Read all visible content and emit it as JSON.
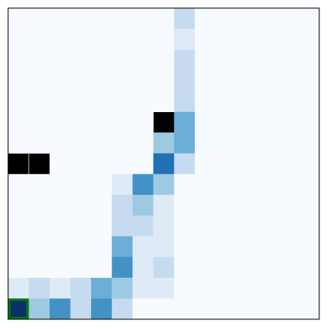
{
  "chart_data": {
    "type": "heatmap",
    "values": [
      [
        0,
        0,
        0,
        0,
        0,
        0,
        0,
        0,
        0.25,
        0,
        0,
        0,
        0,
        0,
        0
      ],
      [
        0,
        0,
        0,
        0,
        0,
        0,
        0,
        0,
        0.125,
        0,
        0,
        0,
        0,
        0,
        0
      ],
      [
        0,
        0,
        0,
        0,
        0,
        0,
        0,
        0,
        0.25,
        0,
        0,
        0,
        0,
        0,
        0
      ],
      [
        0,
        0,
        0,
        0,
        0,
        0,
        0,
        0,
        0.25,
        0,
        0,
        0,
        0,
        0,
        0
      ],
      [
        0,
        0,
        0,
        0,
        0,
        0,
        0,
        0,
        0.25,
        0,
        0,
        0,
        0,
        0,
        0
      ],
      [
        0,
        0,
        0,
        0,
        0,
        0,
        0,
        null,
        0.5,
        0,
        0,
        0,
        0,
        0,
        0
      ],
      [
        0,
        0,
        0,
        0,
        0,
        0,
        0,
        0.375,
        0.5,
        0,
        0,
        0,
        0,
        0,
        0
      ],
      [
        null,
        null,
        0,
        0,
        0,
        0,
        0,
        0.75,
        0.25,
        0,
        0,
        0,
        0,
        0,
        0
      ],
      [
        0,
        0,
        0,
        0,
        0,
        0.125,
        0.625,
        0.375,
        0,
        0,
        0,
        0,
        0,
        0,
        0
      ],
      [
        0,
        0,
        0,
        0,
        0,
        0.25,
        0.375,
        0.125,
        0,
        0,
        0,
        0,
        0,
        0,
        0
      ],
      [
        0,
        0,
        0,
        0,
        0,
        0.25,
        0.25,
        0.125,
        0,
        0,
        0,
        0,
        0,
        0,
        0
      ],
      [
        0,
        0,
        0,
        0,
        0,
        0.5,
        0.125,
        0.125,
        0,
        0,
        0,
        0,
        0,
        0,
        0
      ],
      [
        0,
        0,
        0,
        0,
        0,
        0.625,
        0.125,
        0.25,
        0,
        0,
        0,
        0,
        0,
        0,
        0
      ],
      [
        0.125,
        0.25,
        0.125,
        0.25,
        0.5,
        0.375,
        0.125,
        0.125,
        0,
        0,
        0,
        0,
        0,
        0,
        0
      ],
      [
        1,
        0.375,
        0.625,
        0.25,
        0.625,
        0.25,
        0,
        0,
        0,
        0,
        0,
        0,
        0,
        0,
        0
      ]
    ],
    "colormap": [
      "#f7fbff",
      "#deebf7",
      "#c6dbef",
      "#9ecae1",
      "#6baed6",
      "#4292c6",
      "#2171b5",
      "#08519c",
      "#08306b"
    ],
    "wall_color": "#000000",
    "agent": {
      "row": 14,
      "col": 0,
      "color": "#007a0c"
    }
  }
}
